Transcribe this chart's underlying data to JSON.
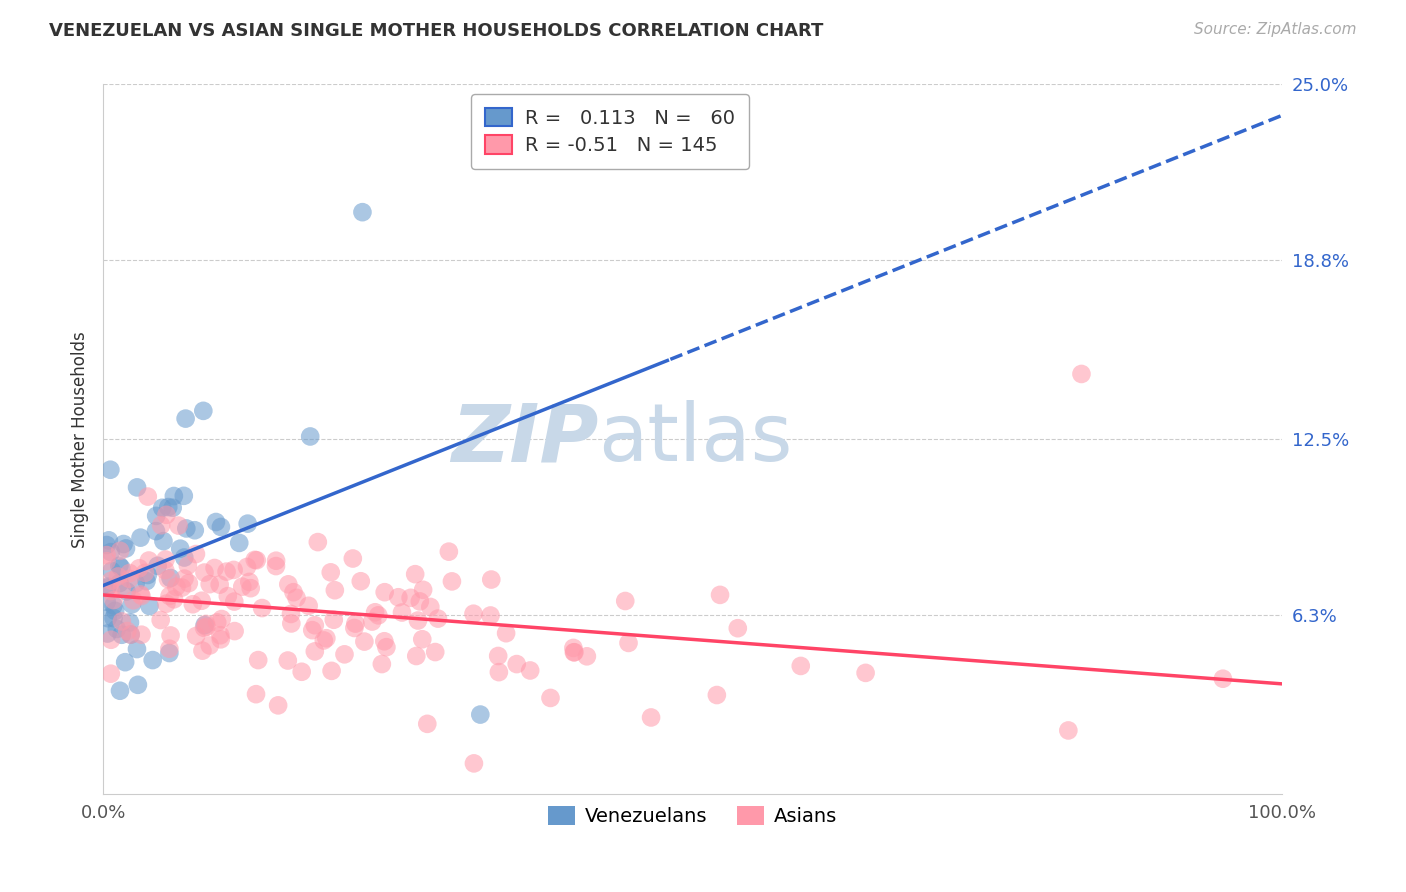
{
  "title": "VENEZUELAN VS ASIAN SINGLE MOTHER HOUSEHOLDS CORRELATION CHART",
  "source": "Source: ZipAtlas.com",
  "ylabel": "Single Mother Households",
  "xlim": [
    0,
    1.0
  ],
  "ylim": [
    0,
    0.25
  ],
  "ytick_labels": [
    "6.3%",
    "12.5%",
    "18.8%",
    "25.0%"
  ],
  "ytick_values": [
    0.063,
    0.125,
    0.188,
    0.25
  ],
  "gridline_color": "#cccccc",
  "background_color": "#ffffff",
  "blue_color": "#6699cc",
  "pink_color": "#ff99aa",
  "blue_line_color": "#3366cc",
  "pink_line_color": "#ff4466",
  "R_blue": 0.113,
  "N_blue": 60,
  "R_pink": -0.51,
  "N_pink": 145,
  "watermark_zip": "ZIP",
  "watermark_atlas": "atlas",
  "watermark_color": "#c8d8e8",
  "legend_label_blue": "Venezuelans",
  "legend_label_pink": "Asians"
}
